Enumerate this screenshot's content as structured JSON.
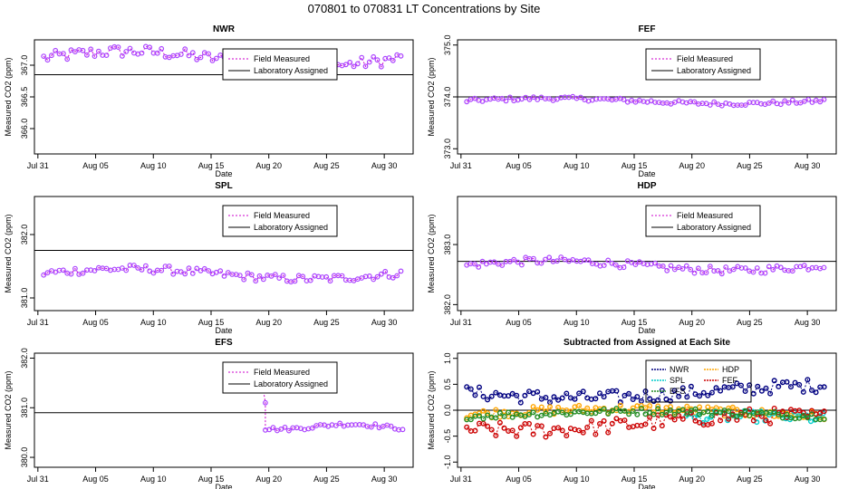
{
  "title": "070801  to  070831 LT Concentrations by Site",
  "x_tick_labels": [
    "Jul 31",
    "Aug 05",
    "Aug 10",
    "Aug 15",
    "Aug 20",
    "Aug 25",
    "Aug 30"
  ],
  "xlabel": "Date",
  "ylabel": "Measured CO2 (ppm)",
  "legend_labels": {
    "field": "Field Measured",
    "lab": "Laboratory Assigned"
  },
  "colors": {
    "field": "#cc00cc",
    "points": "#aa44ff",
    "lab": "#000000",
    "NWR": "#000080",
    "HDP": "#ffa500",
    "SPL": "#00cccc",
    "FEF": "#cc0000",
    "EFS": "#228b22"
  },
  "chart_data": [
    {
      "type": "line",
      "site": "NWR",
      "title": "NWR",
      "x_range": [
        -0.3,
        32.5
      ],
      "ylim": [
        365.6,
        367.4
      ],
      "y_ticks": [
        366.0,
        366.5,
        367.0
      ],
      "y_tick_labels": [
        "366.0",
        "366.5",
        "367.0"
      ],
      "assigned": 366.85,
      "base": 367.1,
      "amplitude": 0.12,
      "period": 31,
      "legend": {
        "field": "Field Measured",
        "lab": "Laboratory Assigned"
      }
    },
    {
      "type": "line",
      "site": "FEF",
      "title": "FEF",
      "x_range": [
        -0.3,
        32.5
      ],
      "ylim": [
        372.9,
        375.1
      ],
      "y_ticks": [
        373.0,
        374.0,
        375.0
      ],
      "y_tick_labels": [
        "373.0",
        "374.0",
        "375.0"
      ],
      "assigned": 374.0,
      "base": 373.92,
      "amplitude": 0.05,
      "period": 31,
      "legend": {
        "field": "Field Measured",
        "lab": "Laboratory Assigned"
      }
    },
    {
      "type": "line",
      "site": "SPL",
      "title": "SPL",
      "x_range": [
        -0.3,
        32.5
      ],
      "ylim": [
        380.8,
        382.6
      ],
      "y_ticks": [
        381.0,
        382.0
      ],
      "y_tick_labels": [
        "381.0",
        "382.0"
      ],
      "assigned": 381.75,
      "base": 381.38,
      "amplitude": 0.08,
      "period": 31,
      "legend": {
        "field": "Field Measured",
        "lab": "Laboratory Assigned"
      }
    },
    {
      "type": "line",
      "site": "HDP",
      "title": "HDP",
      "x_range": [
        -0.3,
        32.5
      ],
      "ylim": [
        381.9,
        383.8
      ],
      "y_ticks": [
        382.0,
        383.0
      ],
      "y_tick_labels": [
        "382.0",
        "383.0"
      ],
      "assigned": 382.72,
      "base": 382.65,
      "amplitude": 0.08,
      "period": 31,
      "legend": {
        "field": "Field Measured",
        "lab": "Laboratory Assigned"
      }
    },
    {
      "type": "line",
      "site": "EFS",
      "title": "EFS",
      "x_range": [
        -0.3,
        32.5
      ],
      "ylim": [
        379.8,
        382.1
      ],
      "y_ticks": [
        380.0,
        381.0,
        382.0
      ],
      "y_tick_labels": [
        "380.0",
        "381.0",
        "382.0"
      ],
      "assigned": 380.9,
      "start_day": 19.7,
      "base": 380.62,
      "amplitude": 0.05,
      "period": 12,
      "legend": {
        "field": "Field Measured",
        "lab": "Laboratory Assigned"
      }
    },
    {
      "type": "scatter",
      "title": "Subtracted from Assigned at Each Site",
      "x_range": [
        -0.3,
        32.5
      ],
      "ylim": [
        -1.1,
        1.1
      ],
      "y_ticks": [
        -1.0,
        -0.5,
        0.0,
        0.5,
        1.0
      ],
      "y_tick_labels": [
        "-1.0",
        "-0.5",
        "0.0",
        "0.5",
        "1.0"
      ],
      "zero_line": 0.0,
      "series": [
        {
          "name": "NWR",
          "color": "#000080",
          "base": 0.36,
          "amplitude": 0.12,
          "start_day": 0.5
        },
        {
          "name": "HDP",
          "color": "#ffa500",
          "base": -0.05,
          "amplitude": 0.08,
          "start_day": 0.5
        },
        {
          "name": "SPL",
          "color": "#00cccc",
          "base": -0.22,
          "amplitude": 0.1,
          "start_day": 19.5
        },
        {
          "name": "FEF",
          "color": "#cc0000",
          "base": -0.25,
          "amplitude": 0.14,
          "start_day": 0.5
        },
        {
          "name": "EFS",
          "color": "#228b22",
          "base": -0.08,
          "amplitude": 0.06,
          "start_day": 0.5
        }
      ],
      "legend_names": [
        "NWR",
        "HDP",
        "SPL",
        "FEF",
        "EFS"
      ]
    }
  ]
}
